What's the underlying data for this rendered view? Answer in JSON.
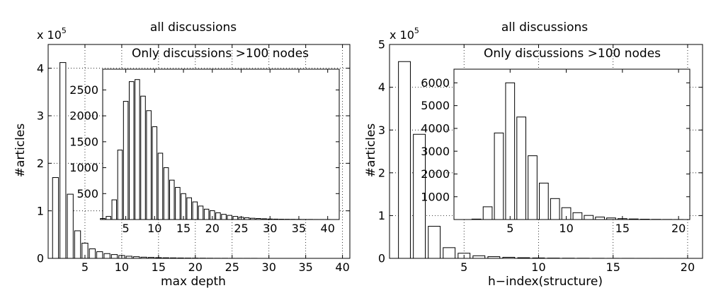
{
  "chart_data": [
    {
      "type": "bar",
      "title": "all discussions",
      "xlabel": "max depth",
      "ylabel": "#articles",
      "y_multiplier": "x 10",
      "y_exponent": "5",
      "xlim": [
        0,
        41
      ],
      "ylim": [
        0,
        4.5
      ],
      "xticks": [
        5,
        10,
        15,
        20,
        25,
        30,
        35,
        40
      ],
      "yticks": [
        0,
        1,
        2,
        3,
        4
      ],
      "grid": true,
      "x": [
        1,
        2,
        3,
        4,
        5,
        6,
        7,
        8,
        9,
        10,
        11,
        12,
        13,
        14,
        15,
        16,
        17,
        18,
        19,
        20,
        21,
        22,
        23,
        24,
        25,
        26,
        27,
        28,
        29,
        30,
        31,
        32,
        33,
        34,
        35,
        36,
        37,
        38,
        39,
        40
      ],
      "values": [
        1.7,
        4.12,
        1.35,
        0.58,
        0.32,
        0.2,
        0.14,
        0.1,
        0.08,
        0.06,
        0.045,
        0.035,
        0.025,
        0.02,
        0.015,
        0.012,
        0.01,
        0.008,
        0.006,
        0.005,
        0.004,
        0.003,
        0.002,
        0.002,
        0.001,
        0.001,
        0.001,
        0.001,
        0,
        0,
        0,
        0,
        0,
        0,
        0,
        0,
        0,
        0,
        0,
        0
      ],
      "inset": {
        "title": "Only discussions >100 nodes",
        "xlim": [
          1,
          42
        ],
        "ylim": [
          0,
          2900
        ],
        "xticks": [
          5,
          10,
          15,
          20,
          25,
          30,
          35,
          40
        ],
        "yticks": [
          500,
          1000,
          1500,
          2000,
          2500
        ],
        "x": [
          1,
          2,
          3,
          4,
          5,
          6,
          7,
          8,
          9,
          10,
          11,
          12,
          13,
          14,
          15,
          16,
          17,
          18,
          19,
          20,
          21,
          22,
          23,
          24,
          25,
          26,
          27,
          28,
          29,
          30,
          31,
          32,
          33,
          34,
          35,
          36,
          37,
          38,
          39,
          40
        ],
        "values": [
          20,
          60,
          380,
          1340,
          2280,
          2660,
          2700,
          2380,
          2100,
          1790,
          1280,
          1000,
          760,
          620,
          500,
          420,
          340,
          260,
          200,
          170,
          130,
          100,
          80,
          60,
          45,
          35,
          25,
          20,
          15,
          10,
          8,
          6,
          5,
          4,
          3,
          2,
          2,
          1,
          1,
          1
        ]
      }
    },
    {
      "type": "bar",
      "title": "all discussions",
      "xlabel": "h−index(structure)",
      "ylabel": "#articles",
      "y_multiplier": "x 10",
      "y_exponent": "5",
      "xlim": [
        0,
        21
      ],
      "ylim": [
        0,
        5
      ],
      "xticks": [
        5,
        10,
        15,
        20
      ],
      "yticks": [
        0,
        1,
        2,
        3,
        4,
        5
      ],
      "grid": true,
      "x": [
        1,
        2,
        3,
        4,
        5,
        6,
        7,
        8,
        9,
        10,
        11,
        12,
        13,
        14,
        15,
        16,
        17,
        18,
        19,
        20
      ],
      "values": [
        4.6,
        2.9,
        0.75,
        0.25,
        0.12,
        0.06,
        0.04,
        0.025,
        0.015,
        0.01,
        0.006,
        0.004,
        0.003,
        0.002,
        0.001,
        0.001,
        0.0005,
        0.0003,
        0.0002,
        0.0001
      ],
      "inset": {
        "title": "Only discussions >100 nodes",
        "xlim": [
          0,
          21
        ],
        "ylim": [
          0,
          6600
        ],
        "xticks": [
          5,
          10,
          15,
          20
        ],
        "yticks": [
          1000,
          2000,
          3000,
          4000,
          5000,
          6000
        ],
        "x": [
          1,
          2,
          3,
          4,
          5,
          6,
          7,
          8,
          9,
          10,
          11,
          12,
          13,
          14,
          15,
          16,
          17,
          18,
          19,
          20
        ],
        "values": [
          0,
          20,
          560,
          3800,
          6000,
          4500,
          2800,
          1600,
          920,
          520,
          300,
          180,
          110,
          70,
          40,
          25,
          15,
          8,
          4,
          2
        ]
      }
    }
  ]
}
